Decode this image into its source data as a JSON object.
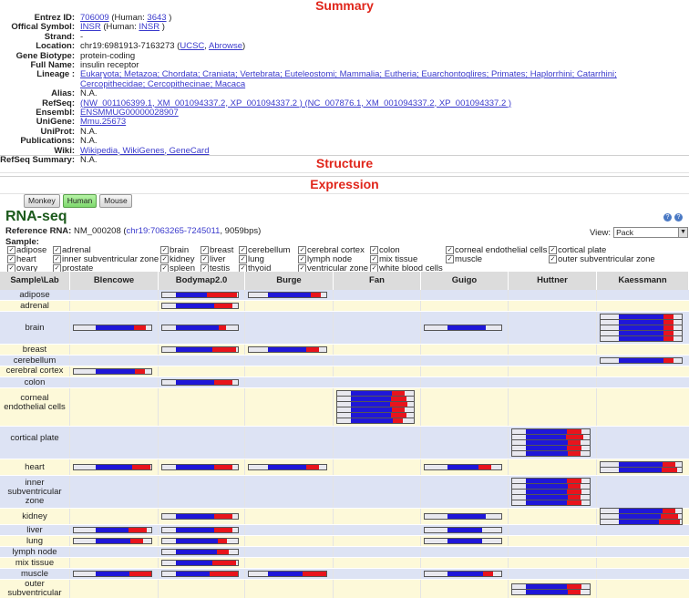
{
  "summary": {
    "title": "Summary",
    "rows": [
      {
        "k": "Entrez ID:",
        "parts": [
          {
            "t": "706009",
            "l": true
          },
          {
            "t": " (Human: "
          },
          {
            "t": "3643",
            "l": true
          },
          {
            "t": " )"
          }
        ]
      },
      {
        "k": "Offical Symbol:",
        "parts": [
          {
            "t": "INSR",
            "l": true
          },
          {
            "t": " (Human: "
          },
          {
            "t": "INSR",
            "l": true
          },
          {
            "t": " )"
          }
        ]
      },
      {
        "k": "Strand:",
        "parts": [
          {
            "t": "-"
          }
        ]
      },
      {
        "k": "Location:",
        "parts": [
          {
            "t": "chr19:6981913-7163273 ("
          },
          {
            "t": "UCSC",
            "l": true
          },
          {
            "t": ", "
          },
          {
            "t": "Abrowse",
            "l": true
          },
          {
            "t": ")"
          }
        ]
      },
      {
        "k": "Gene Biotype:",
        "parts": [
          {
            "t": "protein-coding"
          }
        ]
      },
      {
        "k": "Full Name:",
        "parts": [
          {
            "t": "insulin receptor"
          }
        ]
      },
      {
        "k": "Lineage :",
        "parts": [
          {
            "t": "Eukaryota; Metazoa; Chordata; Craniata; Vertebrata; Euteleostomi; Mammalia; Eutheria; Euarchontoglires; Primates; Haplorrhini; Catarrhini; Cercopithecidae; Cercopithecinae; Macaca",
            "l": true,
            "u": true
          }
        ]
      },
      {
        "k": "Alias:",
        "parts": [
          {
            "t": "N.A."
          }
        ]
      },
      {
        "k": "RefSeq:",
        "parts": [
          {
            "t": "(NW_001106399.1, XM_001094337.2, XP_001094337.2 ) (NC_007876.1, XM_001094337.2, XP_001094337.2 )",
            "l": true
          }
        ]
      },
      {
        "k": "Ensembl:",
        "parts": [
          {
            "t": "ENSMMUG00000028907",
            "l": true,
            "u": true
          }
        ]
      },
      {
        "k": "UniGene:",
        "parts": [
          {
            "t": "Mmu.25673",
            "l": true,
            "u": true
          }
        ]
      },
      {
        "k": "UniProt:",
        "parts": [
          {
            "t": "N.A."
          }
        ]
      },
      {
        "k": "Publications:",
        "parts": [
          {
            "t": "N.A."
          }
        ]
      },
      {
        "k": "Wiki:",
        "parts": [
          {
            "t": "Wikipedia, WikiGenes, GeneCard",
            "l": true
          }
        ]
      },
      {
        "k": "RefSeq Summary:",
        "parts": [
          {
            "t": "N.A."
          }
        ]
      }
    ]
  },
  "structure": {
    "title": "Structure"
  },
  "expression": {
    "title": "Expression",
    "species_buttons": [
      "Monkey",
      "Human",
      "Mouse"
    ],
    "active_species": "Human",
    "rnaseq_title": "RNA-seq",
    "reference_label": "Reference RNA:",
    "reference_value": "NM_000208",
    "reference_coords": "chr19:7063265-7245011",
    "reference_length": ", 9059bps)",
    "view_label": "View:",
    "view_value": "Pack",
    "sample_label": "Sample:",
    "samples": [
      [
        "adipose",
        "adrenal",
        "brain",
        "breast",
        "cerebellum",
        "cerebral cortex",
        "colon",
        "corneal endothelial cells",
        "cortical plate"
      ],
      [
        "heart",
        "inner subventricular zone",
        "kidney",
        "liver",
        "lung",
        "lymph node",
        "mix tissue",
        "muscle",
        "outer subventricular zone"
      ],
      [
        "ovary",
        "prostate",
        "spleen",
        "testis",
        "thyoid",
        "ventricular zone",
        "white blood cells"
      ]
    ],
    "table_headers": [
      "Sample\\Lab",
      "Blencowe",
      "Bodymap2.0",
      "Burge",
      "Fan",
      "Guigo",
      "Huttner",
      "Kaessmann"
    ],
    "table_rows": [
      {
        "label": "adipose",
        "h": 11,
        "bars": {
          "Bodymap2.0": [
            [
              0.18,
              0.55,
              0.25
            ]
          ],
          "Burge": [
            [
              0.25,
              0.6,
              0.08
            ]
          ]
        }
      },
      {
        "label": "adrenal",
        "h": 11,
        "bars": {
          "Bodymap2.0": [
            [
              0.18,
              0.6,
              0.15
            ]
          ]
        }
      },
      {
        "label": "brain",
        "h": 35,
        "bars": {
          "Blencowe": [
            [
              0.28,
              0.55,
              0.1
            ]
          ],
          "Bodymap2.0": [
            [
              0.18,
              0.6,
              0.06
            ]
          ],
          "Guigo": [
            [
              0.3,
              0.5,
              0.0
            ]
          ],
          "Kaessmann": [
            [
              0.22,
              0.6,
              0.08
            ],
            [
              0.22,
              0.6,
              0.08
            ],
            [
              0.22,
              0.6,
              0.08
            ],
            [
              0.22,
              0.6,
              0.08
            ],
            [
              0.22,
              0.6,
              0.08
            ]
          ]
        }
      },
      {
        "label": "breast",
        "h": 11,
        "bars": {
          "Bodymap2.0": [
            [
              0.18,
              0.6,
              0.2
            ]
          ],
          "Burge": [
            [
              0.25,
              0.55,
              0.1
            ]
          ]
        }
      },
      {
        "label": "cerebellum",
        "h": 11,
        "bars": {
          "Kaessmann": [
            [
              0.22,
              0.6,
              0.08
            ]
          ]
        }
      },
      {
        "label": "cerebral cortex",
        "h": 11,
        "bars": {
          "Blencowe": [
            [
              0.28,
              0.55,
              0.08
            ]
          ]
        }
      },
      {
        "label": "colon",
        "h": 11,
        "bars": {
          "Bodymap2.0": [
            [
              0.18,
              0.6,
              0.15
            ]
          ]
        }
      },
      {
        "label": "corneal endothelial cells",
        "h": 41,
        "bars": {
          "Fan": [
            [
              0.18,
              0.6,
              0.1
            ],
            [
              0.18,
              0.6,
              0.12
            ],
            [
              0.18,
              0.6,
              0.14
            ],
            [
              0.18,
              0.6,
              0.1
            ],
            [
              0.18,
              0.6,
              0.12
            ],
            [
              0.18,
              0.6,
              0.08
            ]
          ]
        }
      },
      {
        "label": "cortical plate",
        "h": 35,
        "bars": {
          "Huttner": [
            [
              0.18,
              0.6,
              0.12
            ],
            [
              0.18,
              0.6,
              0.14
            ],
            [
              0.18,
              0.6,
              0.1
            ],
            [
              0.18,
              0.6,
              0.12
            ],
            [
              0.18,
              0.6,
              0.1
            ]
          ]
        }
      },
      {
        "label": "heart",
        "h": 17,
        "bars": {
          "Blencowe": [
            [
              0.28,
              0.55,
              0.15
            ]
          ],
          "Bodymap2.0": [
            [
              0.18,
              0.6,
              0.15
            ]
          ],
          "Burge": [
            [
              0.25,
              0.55,
              0.1
            ]
          ],
          "Guigo": [
            [
              0.3,
              0.45,
              0.1
            ]
          ],
          "Kaessmann": [
            [
              0.22,
              0.6,
              0.1
            ],
            [
              0.22,
              0.6,
              0.12
            ]
          ]
        }
      },
      {
        "label": "inner subventricular zone",
        "h": 35,
        "bars": {
          "Huttner": [
            [
              0.18,
              0.6,
              0.12
            ],
            [
              0.18,
              0.6,
              0.1
            ],
            [
              0.18,
              0.6,
              0.12
            ],
            [
              0.18,
              0.6,
              0.1
            ],
            [
              0.18,
              0.6,
              0.12
            ]
          ]
        }
      },
      {
        "label": "kidney",
        "h": 17,
        "bars": {
          "Bodymap2.0": [
            [
              0.18,
              0.6,
              0.15
            ]
          ],
          "Guigo": [
            [
              0.3,
              0.5,
              0.0
            ]
          ],
          "Kaessmann": [
            [
              0.22,
              0.6,
              0.1
            ],
            [
              0.22,
              0.6,
              0.14
            ],
            [
              0.22,
              0.6,
              0.16
            ]
          ]
        }
      },
      {
        "label": "liver",
        "h": 11,
        "bars": {
          "Blencowe": [
            [
              0.28,
              0.5,
              0.15
            ]
          ],
          "Bodymap2.0": [
            [
              0.18,
              0.6,
              0.15
            ]
          ],
          "Guigo": [
            [
              0.3,
              0.45,
              0.0
            ]
          ]
        }
      },
      {
        "label": "lung",
        "h": 11,
        "bars": {
          "Blencowe": [
            [
              0.28,
              0.5,
              0.1
            ]
          ],
          "Bodymap2.0": [
            [
              0.18,
              0.6,
              0.08
            ]
          ],
          "Guigo": [
            [
              0.3,
              0.45,
              0.0
            ]
          ]
        }
      },
      {
        "label": "lymph node",
        "h": 11,
        "bars": {
          "Bodymap2.0": [
            [
              0.18,
              0.6,
              0.1
            ]
          ]
        }
      },
      {
        "label": "mix tissue",
        "h": 11,
        "bars": {
          "Bodymap2.0": [
            [
              0.18,
              0.6,
              0.2
            ]
          ]
        }
      },
      {
        "label": "muscle",
        "h": 11,
        "bars": {
          "Blencowe": [
            [
              0.28,
              0.55,
              0.2
            ]
          ],
          "Bodymap2.0": [
            [
              0.18,
              0.6,
              0.25
            ]
          ],
          "Burge": [
            [
              0.25,
              0.55,
              0.2
            ]
          ],
          "Guigo": [
            [
              0.3,
              0.5,
              0.08
            ]
          ]
        }
      },
      {
        "label": "outer subventricular",
        "h": 20,
        "bars": {
          "Huttner": [
            [
              0.18,
              0.6,
              0.12
            ],
            [
              0.18,
              0.6,
              0.1
            ]
          ]
        }
      }
    ]
  },
  "colors": {
    "title_red": "#e0261b",
    "bar_blue": "#1f17d8",
    "bar_red": "#e8141c",
    "row_odd": "#dde3f4",
    "row_even": "#fdf9d9",
    "header_bg": "#dcdcdc",
    "rnaseq_green": "#1c5a1c"
  }
}
